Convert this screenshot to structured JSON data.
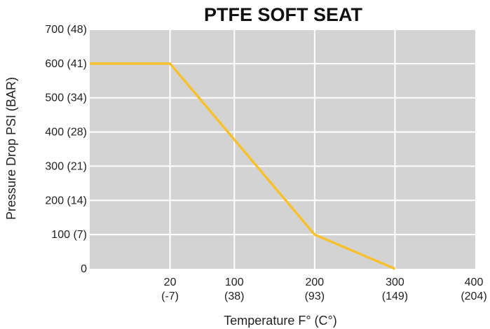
{
  "chart_data": {
    "type": "line",
    "title": "PTFE SOFT SEAT",
    "xlabel": "Temperature F° (C°)",
    "ylabel": "Pressure Drop PSI (BAR)",
    "x_ticks": [
      {
        "value": 20,
        "label": "20",
        "sublabel": "(-7)"
      },
      {
        "value": 100,
        "label": "100",
        "sublabel": "(38)"
      },
      {
        "value": 200,
        "label": "200",
        "sublabel": "(93)"
      },
      {
        "value": 300,
        "label": "300",
        "sublabel": "(149)"
      },
      {
        "value": 400,
        "label": "400",
        "sublabel": "(204)"
      }
    ],
    "y_ticks": [
      {
        "value": 0,
        "label": "0"
      },
      {
        "value": 100,
        "label": "100 (7)"
      },
      {
        "value": 200,
        "label": "200 (14)"
      },
      {
        "value": 300,
        "label": "300 (21)"
      },
      {
        "value": 400,
        "label": "400 (28)"
      },
      {
        "value": 500,
        "label": "500 (34)"
      },
      {
        "value": 600,
        "label": "600 (41)"
      },
      {
        "value": 700,
        "label": "700 (48)"
      }
    ],
    "xlim": [
      -80,
      400
    ],
    "ylim": [
      0,
      700
    ],
    "series": [
      {
        "x": [
          -80,
          20,
          200,
          300
        ],
        "y": [
          600,
          600,
          100,
          0
        ],
        "color": "#f7c02e"
      }
    ],
    "grid": true,
    "plot_background": "#d3d3d3",
    "grid_color": "#ffffff"
  }
}
